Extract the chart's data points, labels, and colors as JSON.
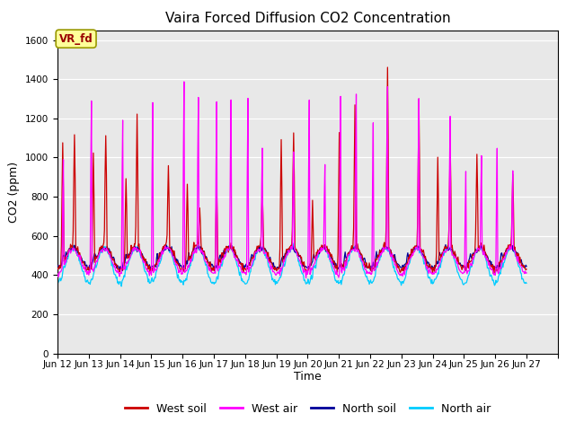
{
  "title": "Vaira Forced Diffusion CO2 Concentration",
  "xlabel": "Time",
  "ylabel": "CO2 (ppm)",
  "ylim": [
    0,
    1650
  ],
  "yticks": [
    0,
    200,
    400,
    600,
    800,
    1000,
    1200,
    1400,
    1600
  ],
  "xlim": [
    11,
    27
  ],
  "xtick_positions": [
    11,
    12,
    13,
    14,
    15,
    16,
    17,
    18,
    19,
    20,
    21,
    22,
    23,
    24,
    25,
    26,
    27
  ],
  "xtick_labels": [
    "Jun 12",
    "Jun 13",
    "Jun 14",
    "Jun 15",
    "Jun 16",
    "Jun 17",
    "Jun 18",
    "Jun 19",
    "Jun 20",
    "Jun 21",
    "Jun 22",
    "Jun 23",
    "Jun 24",
    "Jun 25",
    "Jun 26",
    "Jun 27",
    ""
  ],
  "background_color": "#e8e8e8",
  "colors": {
    "west_soil": "#cc0000",
    "west_air": "#ff00ff",
    "north_soil": "#000099",
    "north_air": "#00ccff"
  },
  "label_box_color": "#ffff99",
  "label_box_text": "VR_fd",
  "label_box_text_color": "#990000",
  "legend_labels": [
    "West soil",
    "West air",
    "North soil",
    "North air"
  ],
  "n_days": 15,
  "points_per_day": 48
}
